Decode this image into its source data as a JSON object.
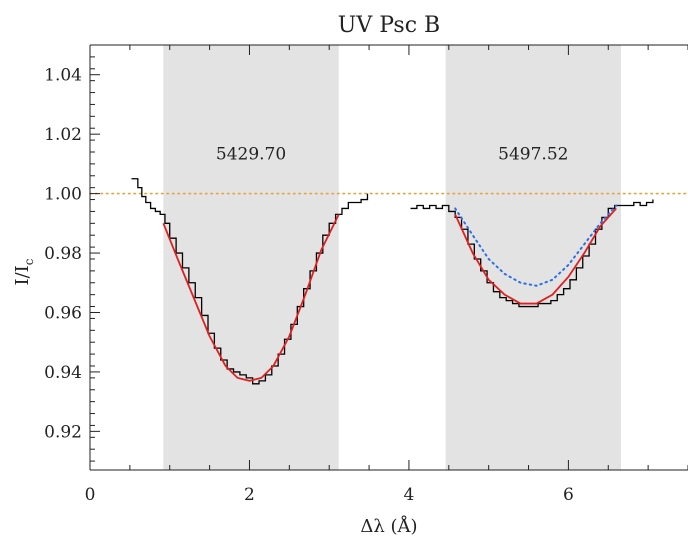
{
  "chart_data": {
    "type": "line",
    "title": "UV Psc B",
    "xlabel": "Δλ (Å)",
    "ylabel": "I/I",
    "ylabel_sub": "c",
    "xlim": [
      0,
      7.5
    ],
    "ylim": [
      0.907,
      1.05
    ],
    "x_ticks": [
      0,
      2,
      4,
      6
    ],
    "x_tick_labels": [
      "0",
      "2",
      "4",
      "6"
    ],
    "y_ticks": [
      0.92,
      0.94,
      0.96,
      0.98,
      1.0,
      1.02,
      1.04
    ],
    "y_tick_labels": [
      "0.92",
      "0.94",
      "0.96",
      "0.98",
      "1.00",
      "1.02",
      "1.04"
    ],
    "reference_line": {
      "y": 1.0,
      "color": "#e8a33c",
      "style": "dotted"
    },
    "bands": [
      {
        "x_start": 0.92,
        "x_end": 3.12,
        "label": "5429.70"
      },
      {
        "x_start": 4.46,
        "x_end": 6.66,
        "label": "5497.52"
      }
    ],
    "series": [
      {
        "style": "step",
        "color": "#000000",
        "x": [
          0.52,
          0.6,
          0.65,
          0.7,
          0.76,
          0.82,
          0.88,
          0.94,
          1.0,
          1.08,
          1.16,
          1.24,
          1.32,
          1.4,
          1.48,
          1.56,
          1.64,
          1.72,
          1.8,
          1.88,
          1.96,
          2.04,
          2.12,
          2.2,
          2.28,
          2.36,
          2.44,
          2.52,
          2.6,
          2.68,
          2.76,
          2.84,
          2.92,
          3.0,
          3.08,
          3.16,
          3.24,
          3.32,
          3.4,
          3.48
        ],
        "y": [
          1.005,
          1.002,
          0.999,
          0.997,
          0.995,
          0.994,
          0.993,
          0.99,
          0.985,
          0.98,
          0.975,
          0.97,
          0.965,
          0.959,
          0.953,
          0.948,
          0.944,
          0.941,
          0.94,
          0.939,
          0.938,
          0.936,
          0.937,
          0.939,
          0.942,
          0.946,
          0.951,
          0.956,
          0.962,
          0.968,
          0.974,
          0.98,
          0.986,
          0.99,
          0.993,
          0.995,
          0.997,
          0.997,
          0.998,
          1.0
        ]
      },
      {
        "style": "step",
        "color": "#000000",
        "x": [
          4.02,
          4.1,
          4.18,
          4.26,
          4.34,
          4.42,
          4.5,
          4.58,
          4.66,
          4.74,
          4.82,
          4.9,
          4.98,
          5.06,
          5.14,
          5.22,
          5.3,
          5.38,
          5.46,
          5.54,
          5.62,
          5.7,
          5.78,
          5.86,
          5.94,
          6.02,
          6.1,
          6.18,
          6.26,
          6.34,
          6.42,
          6.5,
          6.58,
          6.66,
          6.74,
          6.82,
          6.9,
          6.98,
          7.06
        ],
        "y": [
          0.995,
          0.996,
          0.995,
          0.996,
          0.995,
          0.996,
          0.994,
          0.992,
          0.988,
          0.983,
          0.978,
          0.974,
          0.97,
          0.967,
          0.965,
          0.964,
          0.963,
          0.962,
          0.962,
          0.962,
          0.963,
          0.963,
          0.964,
          0.966,
          0.968,
          0.971,
          0.975,
          0.979,
          0.983,
          0.988,
          0.992,
          0.995,
          0.996,
          0.996,
          0.996,
          0.997,
          0.996,
          0.997,
          0.998
        ]
      },
      {
        "style": "solid",
        "color": "#e02020",
        "x": [
          0.92,
          1.1,
          1.3,
          1.5,
          1.7,
          1.85,
          2.0,
          2.15,
          2.3,
          2.5,
          2.7,
          2.9,
          3.12
        ],
        "y": [
          0.99,
          0.978,
          0.965,
          0.952,
          0.942,
          0.938,
          0.937,
          0.938,
          0.942,
          0.952,
          0.966,
          0.981,
          0.993
        ]
      },
      {
        "style": "solid",
        "color": "#e02020",
        "x": [
          4.58,
          4.8,
          5.0,
          5.2,
          5.4,
          5.6,
          5.8,
          6.0,
          6.2,
          6.4,
          6.6
        ],
        "y": [
          0.993,
          0.98,
          0.971,
          0.966,
          0.963,
          0.963,
          0.966,
          0.972,
          0.98,
          0.989,
          0.995
        ]
      },
      {
        "style": "dotted",
        "color": "#2f6fe0",
        "x": [
          4.58,
          4.8,
          5.0,
          5.2,
          5.4,
          5.6,
          5.8,
          6.0,
          6.2,
          6.4,
          6.6
        ],
        "y": [
          0.995,
          0.986,
          0.978,
          0.973,
          0.97,
          0.969,
          0.971,
          0.976,
          0.983,
          0.99,
          0.996
        ]
      }
    ]
  }
}
